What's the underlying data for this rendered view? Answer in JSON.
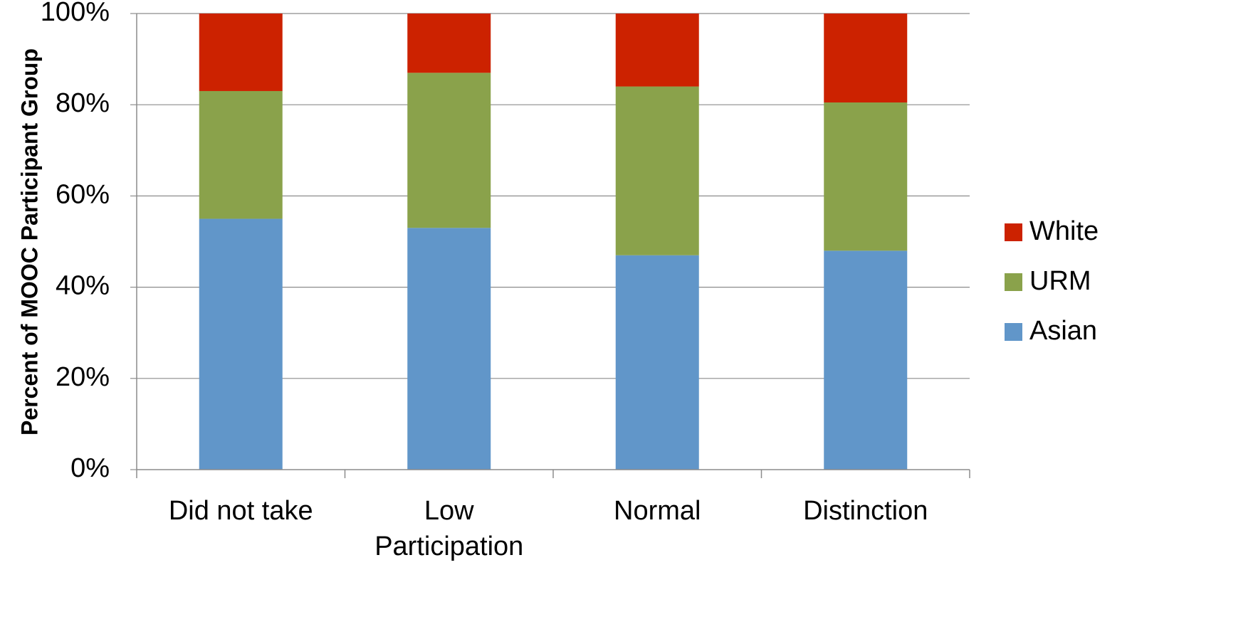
{
  "chart_data": {
    "type": "bar",
    "stacked": true,
    "categories": [
      [
        "Did not take"
      ],
      [
        "Low",
        "Participation"
      ],
      [
        "Normal"
      ],
      [
        "Distinction"
      ]
    ],
    "series": [
      {
        "name": "Asian",
        "color": "#6196c9",
        "values": [
          55,
          53,
          47,
          48
        ]
      },
      {
        "name": "URM",
        "color": "#8aa24b",
        "values": [
          28,
          34,
          37,
          32.5
        ]
      },
      {
        "name": "White",
        "color": "#cc2200",
        "values": [
          17,
          13,
          16,
          19.5
        ]
      }
    ],
    "ylim": [
      0,
      100
    ],
    "yticks": [
      "0%",
      "20%",
      "40%",
      "60%",
      "80%",
      "100%"
    ],
    "ylabel": "Percent of MOOC Participant Group",
    "xlabel": "",
    "grid": true,
    "legend": {
      "position": "right",
      "order": [
        "White",
        "URM",
        "Asian"
      ]
    }
  }
}
